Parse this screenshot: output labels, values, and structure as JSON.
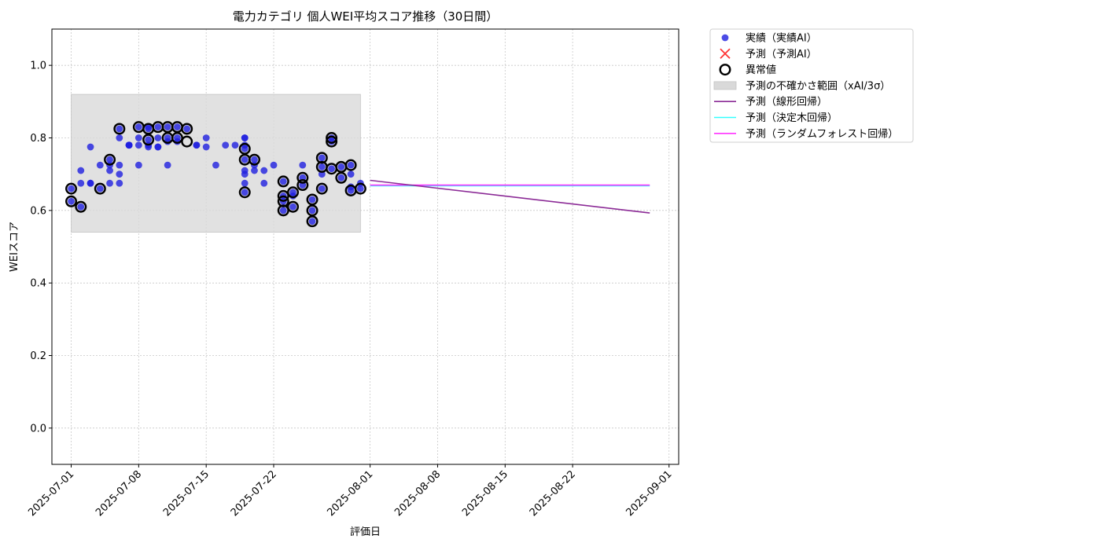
{
  "chart_data": {
    "type": "scatter",
    "title": "電力カテゴリ 個人WEI平均スコア推移（30日間）",
    "xlabel": "評価日",
    "ylabel": "WEIスコア",
    "xlim": [
      "2025-06-29",
      "2025-09-02"
    ],
    "ylim": [
      -0.1,
      1.1
    ],
    "yticks": [
      0.0,
      0.2,
      0.4,
      0.6,
      0.8,
      1.0
    ],
    "ytick_labels": [
      "0.0",
      "0.2",
      "0.4",
      "0.6",
      "0.8",
      "1.0"
    ],
    "xticks": [
      "2025-07-01",
      "2025-07-08",
      "2025-07-15",
      "2025-07-22",
      "2025-08-01",
      "2025-08-08",
      "2025-08-15",
      "2025-08-22",
      "2025-09-01"
    ],
    "grid": true,
    "legend_position": "outside-top-right",
    "colors": {
      "actual": "#1f1fe0",
      "predicted": "#ff3333",
      "anomaly": "#000000",
      "band": "#d9d9d9",
      "linear": "#8b2a96",
      "tree": "#33ffff",
      "forest": "#ff33ff"
    },
    "legend": [
      {
        "key": "actual",
        "label": "実績（実績AI）",
        "marker": "circle"
      },
      {
        "key": "predicted",
        "label": "予測（予測AI）",
        "marker": "x"
      },
      {
        "key": "anomaly",
        "label": "異常値",
        "marker": "ring"
      },
      {
        "key": "band",
        "label": "予測の不確かさ範囲（xAI/3σ）",
        "marker": "patch"
      },
      {
        "key": "linear",
        "label": "予測（線形回帰）",
        "marker": "line"
      },
      {
        "key": "tree",
        "label": "予測（決定木回帰）",
        "marker": "line"
      },
      {
        "key": "forest",
        "label": "予測（ランダムフォレスト回帰）",
        "marker": "line"
      }
    ],
    "uncertainty_band": {
      "x": [
        "2025-07-01",
        "2025-07-31"
      ],
      "y": [
        0.54,
        0.92
      ]
    },
    "series": [
      {
        "name": "実績（実績AI）",
        "points": [
          [
            "2025-07-01",
            0.66
          ],
          [
            "2025-07-01",
            0.625
          ],
          [
            "2025-07-02",
            0.675
          ],
          [
            "2025-07-02",
            0.61
          ],
          [
            "2025-07-02",
            0.71
          ],
          [
            "2025-07-03",
            0.675
          ],
          [
            "2025-07-03",
            0.775
          ],
          [
            "2025-07-03",
            0.675
          ],
          [
            "2025-07-04",
            0.66
          ],
          [
            "2025-07-04",
            0.725
          ],
          [
            "2025-07-05",
            0.675
          ],
          [
            "2025-07-05",
            0.74
          ],
          [
            "2025-07-05",
            0.71
          ],
          [
            "2025-07-05",
            0.725
          ],
          [
            "2025-07-06",
            0.725
          ],
          [
            "2025-07-06",
            0.7
          ],
          [
            "2025-07-06",
            0.675
          ],
          [
            "2025-07-06",
            0.825
          ],
          [
            "2025-07-06",
            0.8
          ],
          [
            "2025-07-07",
            0.78
          ],
          [
            "2025-07-07",
            0.78
          ],
          [
            "2025-07-07",
            0.78
          ],
          [
            "2025-07-07",
            0.78
          ],
          [
            "2025-07-08",
            0.8
          ],
          [
            "2025-07-08",
            0.725
          ],
          [
            "2025-07-08",
            0.83
          ],
          [
            "2025-07-08",
            0.78
          ],
          [
            "2025-07-09",
            0.78
          ],
          [
            "2025-07-09",
            0.83
          ],
          [
            "2025-07-09",
            0.825
          ],
          [
            "2025-07-09",
            0.795
          ],
          [
            "2025-07-09",
            0.775
          ],
          [
            "2025-07-10",
            0.775
          ],
          [
            "2025-07-10",
            0.775
          ],
          [
            "2025-07-10",
            0.8
          ],
          [
            "2025-07-10",
            0.83
          ],
          [
            "2025-07-11",
            0.725
          ],
          [
            "2025-07-11",
            0.8
          ],
          [
            "2025-07-11",
            0.83
          ],
          [
            "2025-07-11",
            0.79
          ],
          [
            "2025-07-12",
            0.8
          ],
          [
            "2025-07-12",
            0.83
          ],
          [
            "2025-07-12",
            0.79
          ],
          [
            "2025-07-13",
            0.825
          ],
          [
            "2025-07-14",
            0.78
          ],
          [
            "2025-07-14",
            0.78
          ],
          [
            "2025-07-15",
            0.8
          ],
          [
            "2025-07-15",
            0.775
          ],
          [
            "2025-07-16",
            0.725
          ],
          [
            "2025-07-17",
            0.78
          ],
          [
            "2025-07-18",
            0.78
          ],
          [
            "2025-07-19",
            0.8
          ],
          [
            "2025-07-19",
            0.78
          ],
          [
            "2025-07-19",
            0.77
          ],
          [
            "2025-07-19",
            0.74
          ],
          [
            "2025-07-19",
            0.71
          ],
          [
            "2025-07-19",
            0.7
          ],
          [
            "2025-07-19",
            0.675
          ],
          [
            "2025-07-19",
            0.65
          ],
          [
            "2025-07-19",
            0.8
          ],
          [
            "2025-07-20",
            0.74
          ],
          [
            "2025-07-20",
            0.725
          ],
          [
            "2025-07-20",
            0.71
          ],
          [
            "2025-07-21",
            0.71
          ],
          [
            "2025-07-21",
            0.675
          ],
          [
            "2025-07-22",
            0.725
          ],
          [
            "2025-07-23",
            0.68
          ],
          [
            "2025-07-23",
            0.64
          ],
          [
            "2025-07-23",
            0.625
          ],
          [
            "2025-07-23",
            0.6
          ],
          [
            "2025-07-24",
            0.65
          ],
          [
            "2025-07-24",
            0.64
          ],
          [
            "2025-07-24",
            0.61
          ],
          [
            "2025-07-25",
            0.725
          ],
          [
            "2025-07-25",
            0.69
          ],
          [
            "2025-07-25",
            0.67
          ],
          [
            "2025-07-26",
            0.63
          ],
          [
            "2025-07-26",
            0.6
          ],
          [
            "2025-07-26",
            0.57
          ],
          [
            "2025-07-27",
            0.745
          ],
          [
            "2025-07-27",
            0.72
          ],
          [
            "2025-07-27",
            0.7
          ],
          [
            "2025-07-27",
            0.66
          ],
          [
            "2025-07-28",
            0.8
          ],
          [
            "2025-07-28",
            0.79
          ],
          [
            "2025-07-28",
            0.715
          ],
          [
            "2025-07-29",
            0.72
          ],
          [
            "2025-07-29",
            0.69
          ],
          [
            "2025-07-30",
            0.725
          ],
          [
            "2025-07-30",
            0.7
          ],
          [
            "2025-07-30",
            0.665
          ],
          [
            "2025-07-30",
            0.655
          ],
          [
            "2025-07-31",
            0.675
          ],
          [
            "2025-07-31",
            0.66
          ]
        ]
      },
      {
        "name": "異常値",
        "points": [
          [
            "2025-07-01",
            0.66
          ],
          [
            "2025-07-01",
            0.625
          ],
          [
            "2025-07-02",
            0.61
          ],
          [
            "2025-07-04",
            0.66
          ],
          [
            "2025-07-05",
            0.74
          ],
          [
            "2025-07-06",
            0.825
          ],
          [
            "2025-07-08",
            0.83
          ],
          [
            "2025-07-09",
            0.825
          ],
          [
            "2025-07-09",
            0.795
          ],
          [
            "2025-07-10",
            0.83
          ],
          [
            "2025-07-11",
            0.83
          ],
          [
            "2025-07-11",
            0.8
          ],
          [
            "2025-07-12",
            0.83
          ],
          [
            "2025-07-12",
            0.8
          ],
          [
            "2025-07-13",
            0.825
          ],
          [
            "2025-07-13",
            0.79
          ],
          [
            "2025-07-19",
            0.77
          ],
          [
            "2025-07-19",
            0.74
          ],
          [
            "2025-07-20",
            0.74
          ],
          [
            "2025-07-19",
            0.65
          ],
          [
            "2025-07-23",
            0.68
          ],
          [
            "2025-07-23",
            0.64
          ],
          [
            "2025-07-23",
            0.625
          ],
          [
            "2025-07-23",
            0.6
          ],
          [
            "2025-07-24",
            0.65
          ],
          [
            "2025-07-24",
            0.61
          ],
          [
            "2025-07-25",
            0.69
          ],
          [
            "2025-07-25",
            0.67
          ],
          [
            "2025-07-26",
            0.63
          ],
          [
            "2025-07-26",
            0.6
          ],
          [
            "2025-07-26",
            0.57
          ],
          [
            "2025-07-27",
            0.745
          ],
          [
            "2025-07-27",
            0.72
          ],
          [
            "2025-07-27",
            0.66
          ],
          [
            "2025-07-28",
            0.8
          ],
          [
            "2025-07-28",
            0.79
          ],
          [
            "2025-07-28",
            0.715
          ],
          [
            "2025-07-29",
            0.72
          ],
          [
            "2025-07-29",
            0.69
          ],
          [
            "2025-07-30",
            0.725
          ],
          [
            "2025-07-30",
            0.655
          ],
          [
            "2025-07-31",
            0.66
          ]
        ]
      },
      {
        "name": "予測（線形回帰）",
        "points": [
          [
            "2025-08-01",
            0.683
          ],
          [
            "2025-08-30",
            0.593
          ]
        ]
      },
      {
        "name": "予測（決定木回帰）",
        "points": [
          [
            "2025-08-01",
            0.668
          ],
          [
            "2025-08-30",
            0.668
          ]
        ]
      },
      {
        "name": "予測（ランダムフォレスト回帰）",
        "points": [
          [
            "2025-08-01",
            0.67
          ],
          [
            "2025-08-30",
            0.67
          ]
        ]
      }
    ]
  }
}
